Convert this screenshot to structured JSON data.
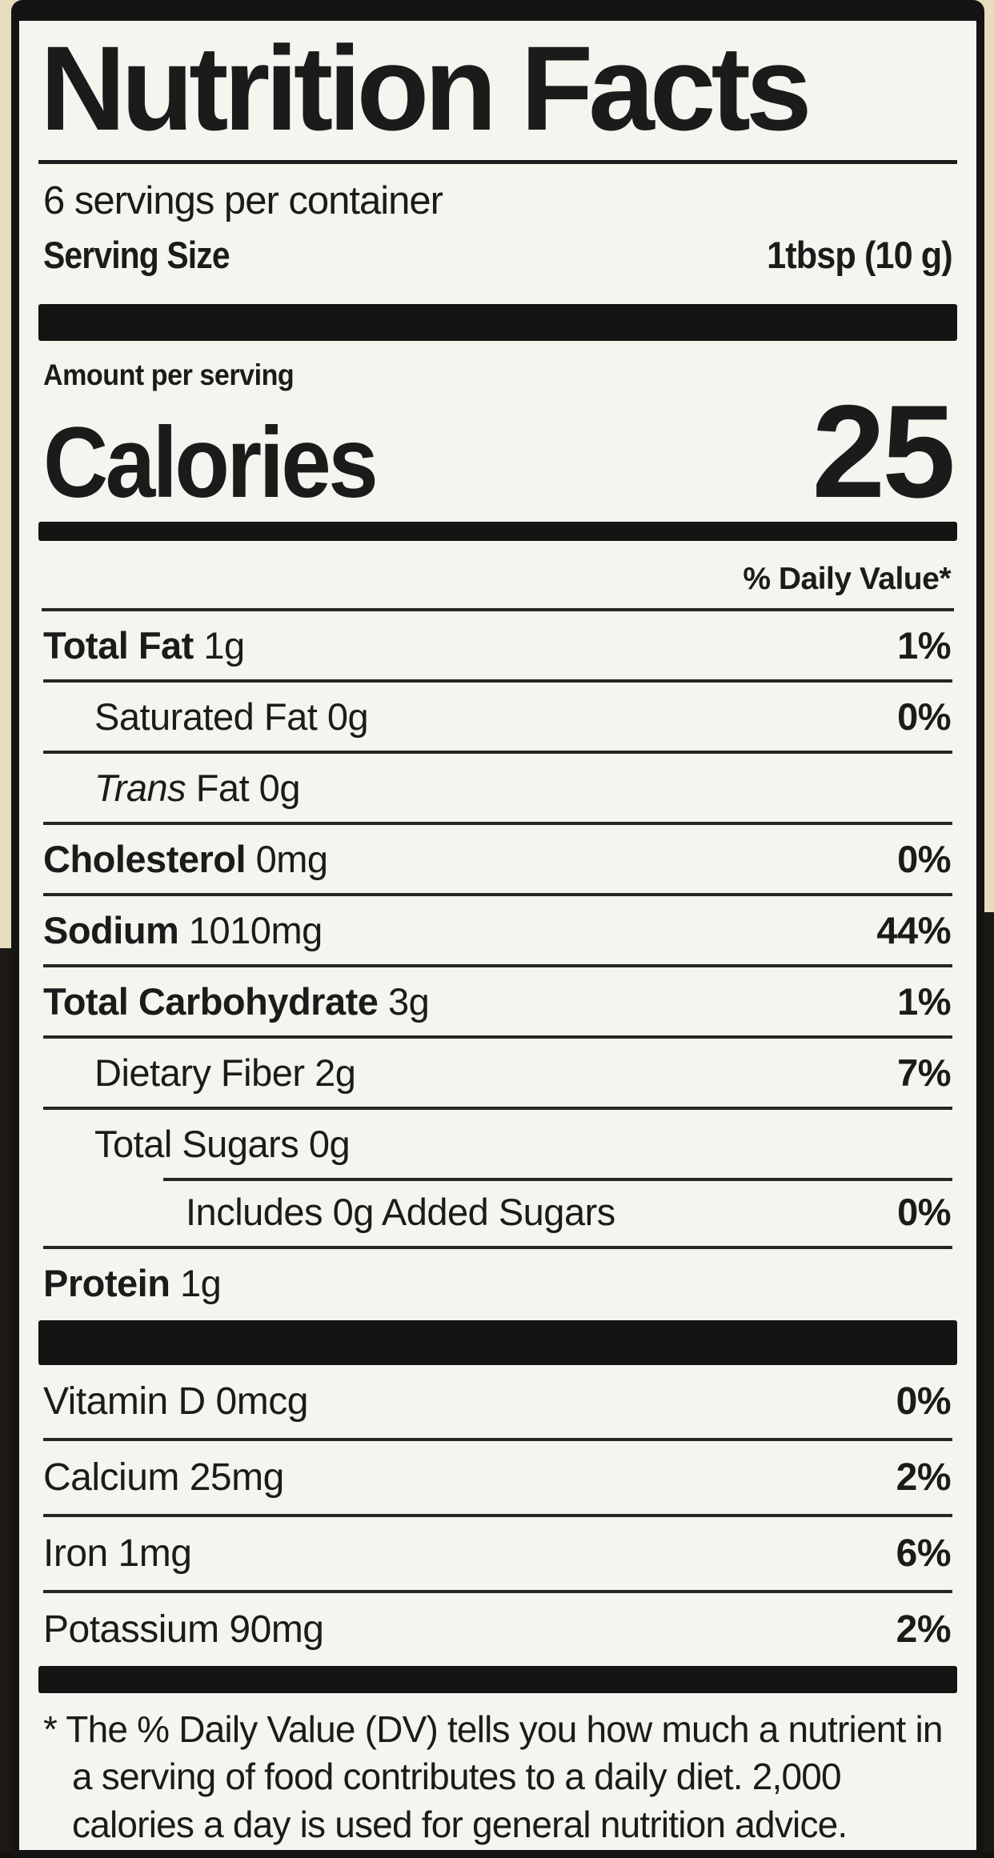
{
  "label": {
    "title": "Nutrition Facts",
    "servings_per_container": "6 servings per container",
    "serving_size": {
      "label": "Serving Size",
      "value": "1tbsp  (10 g)"
    },
    "amount_per_serving": "Amount per serving",
    "calories": {
      "label": "Calories",
      "value": "25"
    },
    "daily_value_header": "% Daily Value*",
    "nutrient_rows": [
      {
        "name": "Total Fat",
        "amount": "1g",
        "dv": "1%",
        "bold": true,
        "italic": false,
        "indent": 0,
        "rule": "none"
      },
      {
        "name": "Saturated Fat",
        "amount": "0g",
        "dv": "0%",
        "bold": false,
        "italic": false,
        "indent": 1,
        "rule": "full"
      },
      {
        "name": "Trans",
        "amount": "Fat 0g",
        "dv": "",
        "bold": false,
        "italic": true,
        "indent": 1,
        "rule": "full"
      },
      {
        "name": "Cholesterol",
        "amount": "0mg",
        "dv": "0%",
        "bold": true,
        "italic": false,
        "indent": 0,
        "rule": "full"
      },
      {
        "name": "Sodium",
        "amount": "1010mg",
        "dv": "44%",
        "bold": true,
        "italic": false,
        "indent": 0,
        "rule": "full"
      },
      {
        "name": "Total Carbohydrate",
        "amount": "3g",
        "dv": "1%",
        "bold": true,
        "italic": false,
        "indent": 0,
        "rule": "full"
      },
      {
        "name": "Dietary Fiber",
        "amount": "2g",
        "dv": "7%",
        "bold": false,
        "italic": false,
        "indent": 1,
        "rule": "full"
      },
      {
        "name": "Total Sugars",
        "amount": "0g",
        "dv": "",
        "bold": false,
        "italic": false,
        "indent": 1,
        "rule": "full"
      },
      {
        "name": "Includes 0g Added Sugars",
        "amount": "",
        "dv": "0%",
        "bold": false,
        "italic": false,
        "indent": 2,
        "rule": "indented"
      },
      {
        "name": "Protein",
        "amount": "1g",
        "dv": "",
        "bold": true,
        "italic": false,
        "indent": 0,
        "rule": "full"
      }
    ],
    "micronutrient_rows": [
      {
        "name": "Vitamin D",
        "amount": "0mcg",
        "dv": "0%"
      },
      {
        "name": "Calcium",
        "amount": "25mg",
        "dv": "2%"
      },
      {
        "name": "Iron",
        "amount": "1mg",
        "dv": "6%"
      },
      {
        "name": "Potassium",
        "amount": "90mg",
        "dv": "2%"
      }
    ],
    "footnote_marker": "*",
    "footnote_text": "The % Daily Value (DV) tells you how much a nutrient in a serving of food contributes to a daily diet. 2,000 calories a day is used for general nutrition advice."
  },
  "colors": {
    "ink": "#1b1b1b",
    "label_background": "#f6f4ee",
    "photo_background_cream": "#e8dcbe",
    "photo_background_dark": "#1c1914"
  }
}
